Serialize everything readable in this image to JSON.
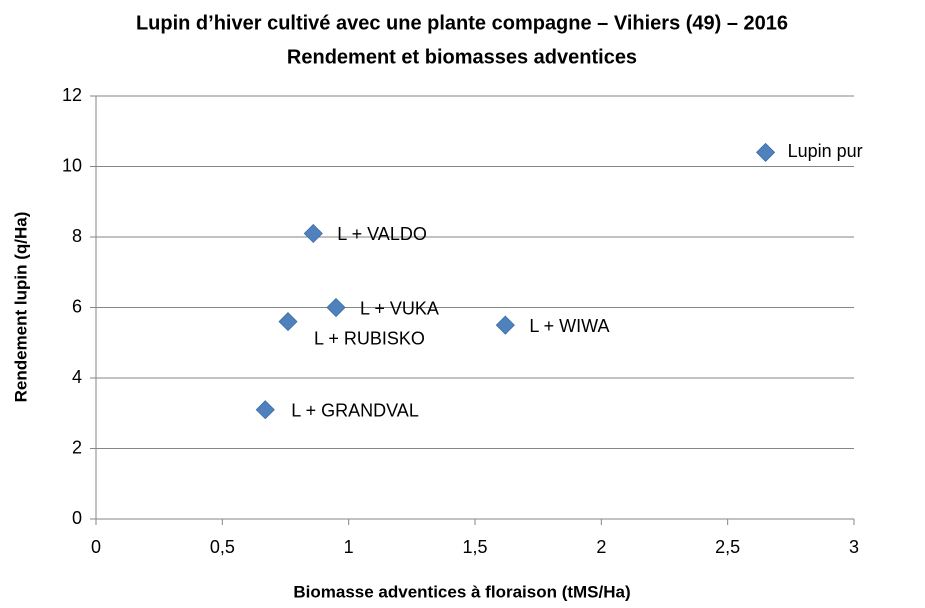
{
  "chart_data": {
    "type": "scatter",
    "title": "Lupin d’hiver cultivé avec une plante compagne – Vihiers (49) – 2016",
    "subtitle": "Rendement et biomasses adventices",
    "x_label": "Biomasse adventices à floraison (tMS/Ha)",
    "y_label": "Rendement lupin (q/Ha)",
    "series": [
      {
        "name": "Rendement",
        "color": "#4f81bd",
        "labels": [
          "Lupin pur",
          "L + VALDO",
          "L + VUKA",
          "L + RUBISKO",
          "L + WIWA",
          "L + GRANDVAL"
        ],
        "x": [
          2.65,
          0.86,
          0.95,
          0.76,
          1.62,
          0.67
        ],
        "values": [
          10.4,
          8.1,
          6.0,
          5.6,
          5.5,
          3.1
        ]
      }
    ],
    "xlim": [
      0,
      3
    ],
    "xticks": [
      0,
      {
        "value": 0.5,
        "label": "0,5"
      },
      1,
      {
        "value": 1.5,
        "label": "1,5"
      },
      2,
      {
        "value": 2.5,
        "label": "2,5"
      },
      3
    ],
    "ylim": [
      0,
      12
    ],
    "yticks": [
      0,
      2,
      4,
      6,
      8,
      10,
      12
    ],
    "grid": true
  }
}
